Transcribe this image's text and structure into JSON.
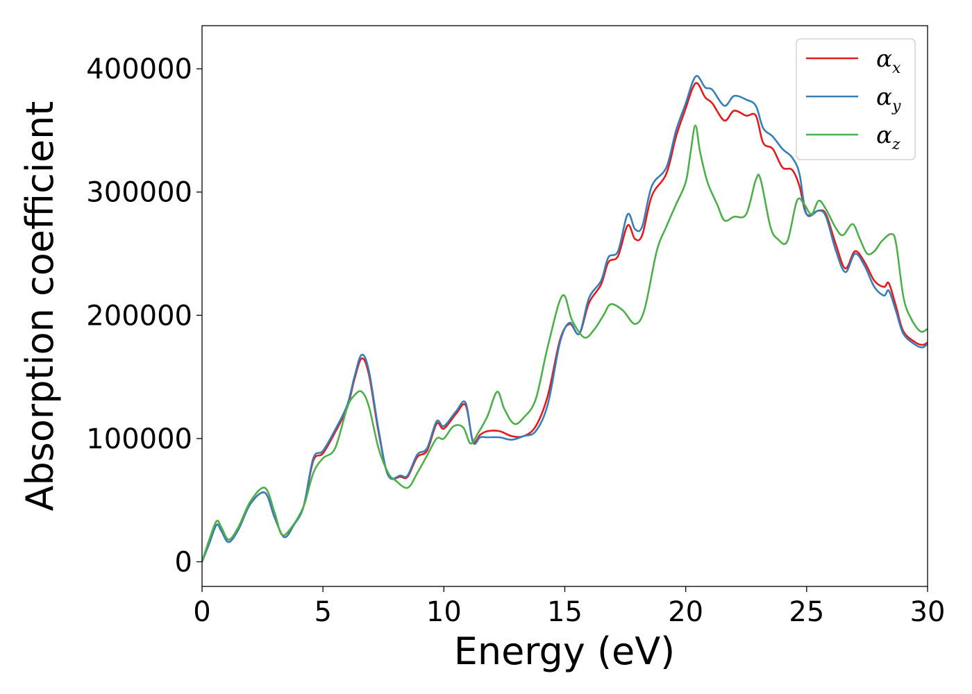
{
  "chart_data": {
    "type": "line",
    "title": "",
    "xlabel": "Energy (eV)",
    "ylabel": "Absorption coefficient",
    "xlim": [
      0,
      30
    ],
    "ylim": [
      -20000,
      435000
    ],
    "xticks": [
      0,
      5,
      10,
      15,
      20,
      25,
      30
    ],
    "xtick_labels": [
      "0",
      "5",
      "10",
      "15",
      "20",
      "25",
      "30"
    ],
    "yticks": [
      0,
      100000,
      200000,
      300000,
      400000
    ],
    "ytick_labels": [
      "0",
      "100000",
      "200000",
      "300000",
      "400000"
    ],
    "grid": false,
    "legend_position": "top-right",
    "series": [
      {
        "name": "αx",
        "symbol": "α",
        "subscript": "x",
        "color": "#e41a1c",
        "points": [
          [
            0,
            0
          ],
          [
            0.3,
            15000
          ],
          [
            0.6,
            30000
          ],
          [
            0.8,
            25000
          ],
          [
            1.1,
            16000
          ],
          [
            1.5,
            26000
          ],
          [
            2,
            47000
          ],
          [
            2.6,
            56000
          ],
          [
            3,
            36000
          ],
          [
            3.4,
            20000
          ],
          [
            3.8,
            30000
          ],
          [
            4.2,
            45000
          ],
          [
            4.6,
            82000
          ],
          [
            5,
            88000
          ],
          [
            5.5,
            105000
          ],
          [
            6,
            125000
          ],
          [
            6.3,
            148000
          ],
          [
            6.6,
            165000
          ],
          [
            6.9,
            152000
          ],
          [
            7.3,
            105000
          ],
          [
            7.7,
            70000
          ],
          [
            8.2,
            69000
          ],
          [
            8.5,
            69000
          ],
          [
            8.9,
            85000
          ],
          [
            9.3,
            90000
          ],
          [
            9.7,
            112000
          ],
          [
            10,
            108000
          ],
          [
            10.5,
            120000
          ],
          [
            10.9,
            127000
          ],
          [
            11.2,
            98000
          ],
          [
            11.5,
            103000
          ],
          [
            11.8,
            106000
          ],
          [
            12.3,
            106000
          ],
          [
            12.8,
            102000
          ],
          [
            13.3,
            102000
          ],
          [
            13.8,
            110000
          ],
          [
            14.3,
            135000
          ],
          [
            14.8,
            180000
          ],
          [
            15.2,
            193000
          ],
          [
            15.6,
            185000
          ],
          [
            16,
            210000
          ],
          [
            16.5,
            225000
          ],
          [
            16.8,
            243000
          ],
          [
            17.2,
            248000
          ],
          [
            17.6,
            273000
          ],
          [
            17.9,
            262000
          ],
          [
            18.2,
            265000
          ],
          [
            18.6,
            297000
          ],
          [
            19.2,
            315000
          ],
          [
            19.6,
            345000
          ],
          [
            20,
            368000
          ],
          [
            20.3,
            385000
          ],
          [
            20.5,
            388000
          ],
          [
            20.8,
            377000
          ],
          [
            21.1,
            372000
          ],
          [
            21.6,
            358000
          ],
          [
            22,
            366000
          ],
          [
            22.5,
            362000
          ],
          [
            22.9,
            362000
          ],
          [
            23.2,
            340000
          ],
          [
            23.6,
            335000
          ],
          [
            24,
            320000
          ],
          [
            24.4,
            318000
          ],
          [
            24.7,
            305000
          ],
          [
            25,
            282000
          ],
          [
            25.5,
            285000
          ],
          [
            25.8,
            282000
          ],
          [
            26.2,
            258000
          ],
          [
            26.6,
            238000
          ],
          [
            27,
            252000
          ],
          [
            27.4,
            243000
          ],
          [
            27.8,
            228000
          ],
          [
            28.2,
            223000
          ],
          [
            28.4,
            226000
          ],
          [
            28.7,
            207000
          ],
          [
            29,
            187000
          ],
          [
            29.5,
            178000
          ],
          [
            29.8,
            176000
          ],
          [
            30,
            178000
          ]
        ]
      },
      {
        "name": "αy",
        "symbol": "α",
        "subscript": "y",
        "color": "#377eb8",
        "points": [
          [
            0,
            0
          ],
          [
            0.3,
            15000
          ],
          [
            0.6,
            30000
          ],
          [
            0.8,
            25000
          ],
          [
            1.1,
            16000
          ],
          [
            1.5,
            26000
          ],
          [
            2,
            47000
          ],
          [
            2.6,
            56000
          ],
          [
            3,
            36000
          ],
          [
            3.4,
            20000
          ],
          [
            3.8,
            30000
          ],
          [
            4.2,
            45000
          ],
          [
            4.6,
            84000
          ],
          [
            5,
            90000
          ],
          [
            5.5,
            107000
          ],
          [
            6,
            127000
          ],
          [
            6.3,
            150000
          ],
          [
            6.6,
            168000
          ],
          [
            6.9,
            155000
          ],
          [
            7.3,
            107000
          ],
          [
            7.7,
            70000
          ],
          [
            8.2,
            70000
          ],
          [
            8.5,
            70000
          ],
          [
            8.9,
            87000
          ],
          [
            9.3,
            92000
          ],
          [
            9.7,
            114000
          ],
          [
            10,
            110000
          ],
          [
            10.5,
            122000
          ],
          [
            10.9,
            129000
          ],
          [
            11.2,
            97000
          ],
          [
            11.5,
            101000
          ],
          [
            11.8,
            101000
          ],
          [
            12.3,
            101000
          ],
          [
            12.8,
            99000
          ],
          [
            13.3,
            102000
          ],
          [
            13.8,
            106000
          ],
          [
            14.3,
            128000
          ],
          [
            14.8,
            178000
          ],
          [
            15.2,
            194000
          ],
          [
            15.6,
            185000
          ],
          [
            16,
            214000
          ],
          [
            16.5,
            228000
          ],
          [
            16.8,
            247000
          ],
          [
            17.2,
            252000
          ],
          [
            17.6,
            282000
          ],
          [
            17.9,
            270000
          ],
          [
            18.2,
            272000
          ],
          [
            18.6,
            305000
          ],
          [
            19.2,
            320000
          ],
          [
            19.6,
            350000
          ],
          [
            20,
            372000
          ],
          [
            20.3,
            390000
          ],
          [
            20.5,
            394000
          ],
          [
            20.8,
            385000
          ],
          [
            21.1,
            383000
          ],
          [
            21.6,
            370000
          ],
          [
            22,
            378000
          ],
          [
            22.5,
            375000
          ],
          [
            22.9,
            370000
          ],
          [
            23.2,
            352000
          ],
          [
            23.6,
            345000
          ],
          [
            24,
            335000
          ],
          [
            24.4,
            328000
          ],
          [
            24.7,
            315000
          ],
          [
            25,
            282000
          ],
          [
            25.5,
            285000
          ],
          [
            25.8,
            280000
          ],
          [
            26.2,
            253000
          ],
          [
            26.6,
            235000
          ],
          [
            27,
            250000
          ],
          [
            27.4,
            240000
          ],
          [
            27.8,
            223000
          ],
          [
            28.2,
            216000
          ],
          [
            28.4,
            220000
          ],
          [
            28.7,
            203000
          ],
          [
            29,
            185000
          ],
          [
            29.5,
            176000
          ],
          [
            29.8,
            174000
          ],
          [
            30,
            177000
          ]
        ]
      },
      {
        "name": "αz",
        "symbol": "α",
        "subscript": "z",
        "color": "#4daf4a",
        "points": [
          [
            0,
            0
          ],
          [
            0.3,
            18000
          ],
          [
            0.6,
            33000
          ],
          [
            0.8,
            28000
          ],
          [
            1.1,
            18000
          ],
          [
            1.5,
            28000
          ],
          [
            2,
            49000
          ],
          [
            2.6,
            60000
          ],
          [
            3,
            40000
          ],
          [
            3.3,
            22000
          ],
          [
            3.7,
            28000
          ],
          [
            4.2,
            45000
          ],
          [
            4.6,
            72000
          ],
          [
            5,
            84000
          ],
          [
            5.5,
            92000
          ],
          [
            6,
            125000
          ],
          [
            6.3,
            135000
          ],
          [
            6.6,
            138000
          ],
          [
            6.9,
            126000
          ],
          [
            7.3,
            92000
          ],
          [
            7.7,
            72000
          ],
          [
            8,
            66000
          ],
          [
            8.5,
            60000
          ],
          [
            8.9,
            72000
          ],
          [
            9.3,
            86000
          ],
          [
            9.7,
            100000
          ],
          [
            10,
            100000
          ],
          [
            10.4,
            110000
          ],
          [
            10.8,
            109000
          ],
          [
            11.1,
            96000
          ],
          [
            11.4,
            104000
          ],
          [
            11.8,
            118000
          ],
          [
            12.2,
            138000
          ],
          [
            12.5,
            124000
          ],
          [
            12.9,
            112000
          ],
          [
            13.3,
            117000
          ],
          [
            13.8,
            132000
          ],
          [
            14.3,
            175000
          ],
          [
            14.9,
            216000
          ],
          [
            15.3,
            196000
          ],
          [
            15.8,
            182000
          ],
          [
            16.2,
            188000
          ],
          [
            16.6,
            200000
          ],
          [
            16.9,
            209000
          ],
          [
            17.4,
            204000
          ],
          [
            17.9,
            193000
          ],
          [
            18.3,
            205000
          ],
          [
            18.8,
            252000
          ],
          [
            19.2,
            272000
          ],
          [
            19.6,
            290000
          ],
          [
            20,
            308000
          ],
          [
            20.2,
            332000
          ],
          [
            20.4,
            354000
          ],
          [
            20.6,
            332000
          ],
          [
            20.9,
            308000
          ],
          [
            21.3,
            290000
          ],
          [
            21.6,
            277000
          ],
          [
            22,
            280000
          ],
          [
            22.5,
            282000
          ],
          [
            22.9,
            310000
          ],
          [
            23.1,
            310000
          ],
          [
            23.5,
            272000
          ],
          [
            23.8,
            262000
          ],
          [
            24.2,
            260000
          ],
          [
            24.6,
            293000
          ],
          [
            24.9,
            290000
          ],
          [
            25.2,
            282000
          ],
          [
            25.5,
            293000
          ],
          [
            25.8,
            286000
          ],
          [
            26.2,
            271000
          ],
          [
            26.5,
            265000
          ],
          [
            26.9,
            274000
          ],
          [
            27.2,
            262000
          ],
          [
            27.5,
            250000
          ],
          [
            27.8,
            252000
          ],
          [
            28.1,
            260000
          ],
          [
            28.5,
            266000
          ],
          [
            28.7,
            258000
          ],
          [
            29,
            215000
          ],
          [
            29.3,
            198000
          ],
          [
            29.7,
            187000
          ],
          [
            30,
            189000
          ]
        ]
      }
    ]
  }
}
